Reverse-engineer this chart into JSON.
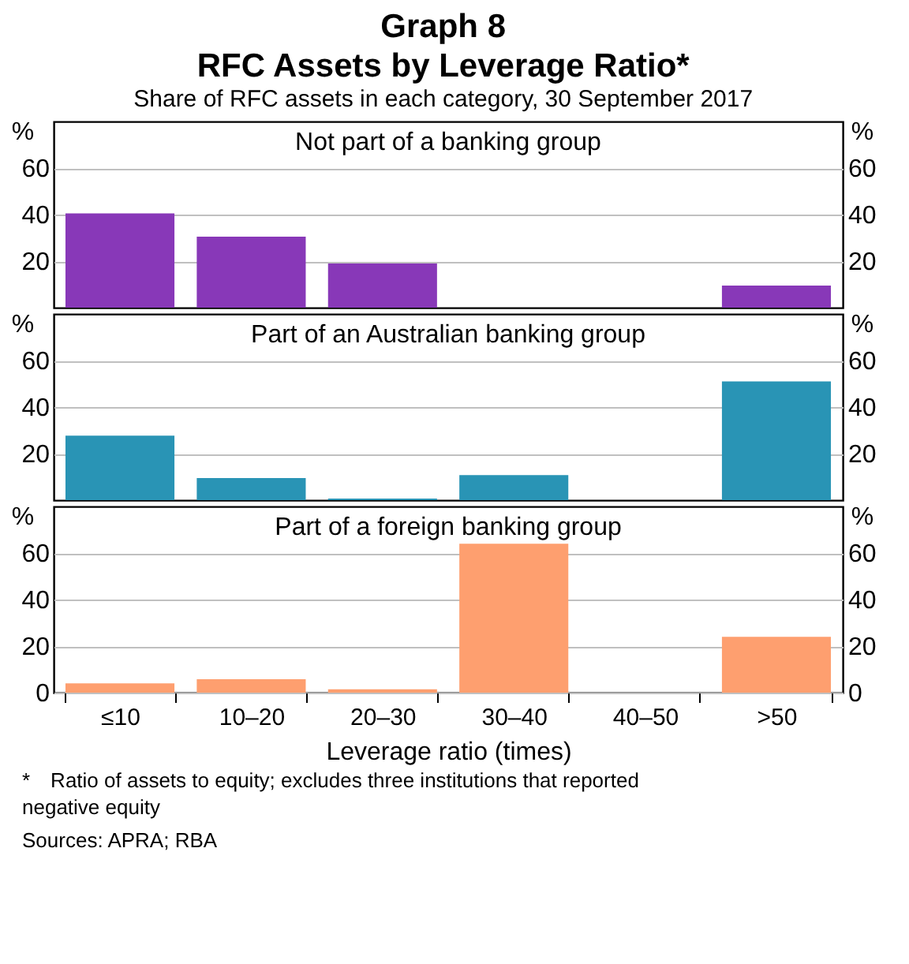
{
  "chart_data": [
    {
      "type": "bar",
      "title": "Graph 8\nRFC Assets by Leverage Ratio*",
      "subtitle": "Share of RFC assets in each category, 30 September 2017",
      "categories": [
        null,
        null,
        null,
        null,
        null,
        null
      ],
      "series": [
        {
          "name": "Not part of a banking group",
          "color": "#8838b8",
          "values": [
            40.5,
            30.5,
            19,
            null,
            null,
            9.5
          ]
        }
      ],
      "ylabel": "%",
      "y2label": "%",
      "ylim": [
        0,
        80
      ],
      "yticks": [
        20,
        40,
        60
      ],
      "y2lim": [
        0,
        80
      ],
      "y2ticks": [
        20,
        40,
        60
      ],
      "grid": "y",
      "tick_labels": "y"
    },
    {
      "type": "bar",
      "categories": [
        null,
        null,
        null,
        null,
        null,
        null
      ],
      "series": [
        {
          "name": "Part of an Australian banking group",
          "color": "#2994b5",
          "values": [
            27.7,
            9.5,
            0.7,
            10.8,
            null,
            51
          ]
        }
      ],
      "ylabel": "%",
      "y2label": "%",
      "ylim": [
        0,
        80
      ],
      "yticks": [
        20,
        40,
        60
      ],
      "y2lim": [
        0,
        80
      ],
      "y2ticks": [
        20,
        40,
        60
      ],
      "grid": "y",
      "tick_labels": "y"
    },
    {
      "type": "bar",
      "xlabel": "Leverage ratio (times)",
      "categories": [
        "≤10",
        "10–20",
        "20–30",
        "30–40",
        "40–50",
        ">50"
      ],
      "series": [
        {
          "name": "Part of a foreign banking group",
          "color": "#fe9f6f",
          "values": [
            4,
            5.8,
            1.4,
            64,
            null,
            24
          ]
        }
      ],
      "ylabel": "%",
      "y2label": "%",
      "ylim": [
        0,
        80
      ],
      "yticks": [
        0,
        20,
        40,
        60
      ],
      "y2lim": [
        0,
        80
      ],
      "y2ticks": [
        0,
        20,
        40,
        60
      ],
      "grid": "y",
      "annotations": [
        "* Ratio of assets to equity; excludes three institutions that reported negative equity",
        "Sources: APRA; RBA"
      ]
    }
  ]
}
